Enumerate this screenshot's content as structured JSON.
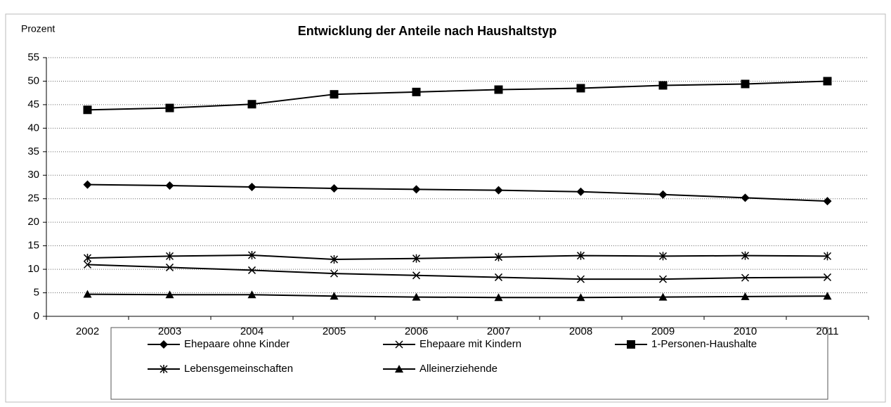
{
  "chart_data": {
    "type": "line",
    "title": "Entwicklung der Anteile nach Haushaltstyp",
    "y_label": "Prozent",
    "categories": [
      "2002",
      "2003",
      "2004",
      "2005",
      "2006",
      "2007",
      "2008",
      "2009",
      "2010",
      "2011"
    ],
    "ylim": [
      0,
      55
    ],
    "yticks": [
      0,
      5,
      10,
      15,
      20,
      25,
      30,
      35,
      40,
      45,
      50,
      55
    ],
    "grid": true,
    "series": [
      {
        "name": "Ehepaare ohne Kinder",
        "color": "#000000",
        "marker": "diamond",
        "values": [
          28.0,
          27.8,
          27.5,
          27.2,
          27.0,
          26.8,
          26.5,
          25.9,
          25.2,
          24.5
        ]
      },
      {
        "name": "Ehepaare mit Kindern",
        "color": "#000000",
        "marker": "x",
        "values": [
          11.0,
          10.4,
          9.8,
          9.1,
          8.7,
          8.3,
          7.9,
          7.9,
          8.2,
          8.3
        ]
      },
      {
        "name": "1-Personen-Haushalte",
        "color": "#000000",
        "marker": "square",
        "values": [
          43.9,
          44.3,
          45.1,
          47.2,
          47.7,
          48.2,
          48.5,
          49.1,
          49.4,
          50.0
        ]
      },
      {
        "name": "Lebensgemeinschaften",
        "color": "#000000",
        "marker": "asterisk",
        "values": [
          12.4,
          12.8,
          13.0,
          12.1,
          12.3,
          12.6,
          12.9,
          12.8,
          12.9,
          12.8
        ]
      },
      {
        "name": "Alleinerziehende",
        "color": "#000000",
        "marker": "triangle",
        "values": [
          4.7,
          4.6,
          4.6,
          4.3,
          4.1,
          4.0,
          4.0,
          4.1,
          4.2,
          4.3
        ]
      }
    ]
  }
}
